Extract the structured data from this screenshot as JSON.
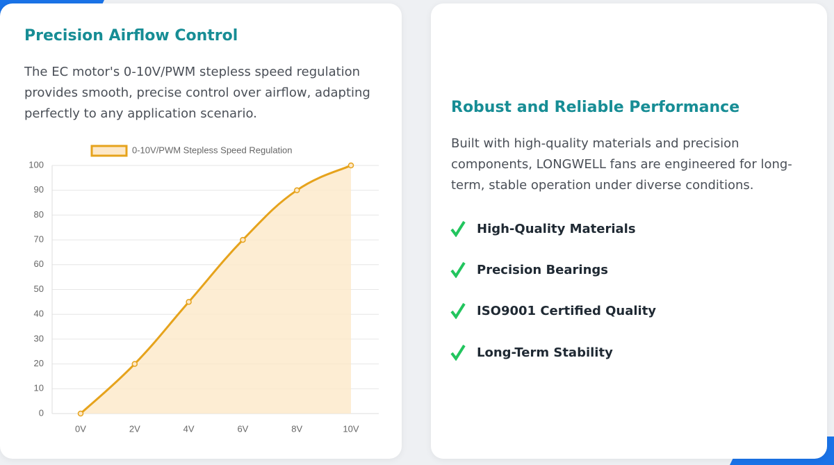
{
  "left_card": {
    "title": "Precision Airflow Control",
    "text": "The EC motor's 0-10V/PWM stepless speed regulation provides smooth, precise control over airflow, adapting perfectly to any application scenario."
  },
  "chart_data": {
    "type": "line",
    "categories": [
      "0V",
      "2V",
      "4V",
      "6V",
      "8V",
      "10V"
    ],
    "series": [
      {
        "name": "0-10V/PWM Stepless Speed Regulation",
        "color": "#e6a31c",
        "fill": "#fde8c8",
        "values": [
          0,
          20,
          45,
          70,
          90,
          100
        ]
      }
    ],
    "ylim": [
      0,
      100
    ],
    "yticks": [
      0,
      10,
      20,
      30,
      40,
      50,
      60,
      70,
      80,
      90,
      100
    ],
    "grid": true,
    "legend": "top"
  },
  "right_card": {
    "title": "Robust and Reliable Performance",
    "text": "Built with high-quality materials and precision components, LONGWELL fans are engineered for long-term, stable operation under diverse conditions.",
    "features": [
      "High-Quality Materials",
      "Precision Bearings",
      "ISO9001 Certified Quality",
      "Long-Term Stability"
    ]
  }
}
